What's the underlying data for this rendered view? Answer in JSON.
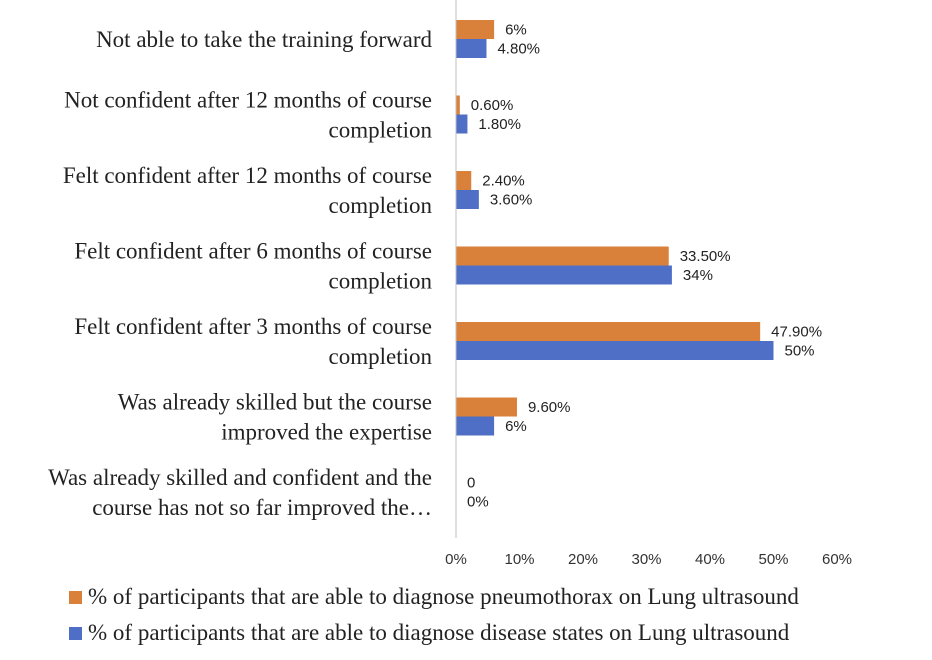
{
  "chart_data": {
    "type": "bar",
    "orientation": "horizontal",
    "categories": [
      [
        "Not able to take the training forward"
      ],
      [
        "Not confident after 12 months of course",
        "completion"
      ],
      [
        "Felt confident after 12 months of course",
        "completion"
      ],
      [
        "Felt confident after 6 months of course",
        "completion"
      ],
      [
        "Felt confident after 3 months of course",
        "completion"
      ],
      [
        "Was already skilled but the course",
        "improved the expertise"
      ],
      [
        "Was already skilled and confident and the",
        "course has not so far improved the…"
      ]
    ],
    "series": [
      {
        "name": "% of participants that are able to diagnose pneumothorax on Lung ultrasound",
        "color": "#D9803A",
        "values": [
          6,
          0.6,
          2.4,
          33.5,
          47.9,
          9.6,
          0
        ],
        "labels": [
          "6%",
          "0.60%",
          "2.40%",
          "33.50%",
          "47.90%",
          "9.60%",
          "0"
        ]
      },
      {
        "name": "% of participants that are able to diagnose disease states on Lung ultrasound",
        "color": "#4F6FC6",
        "values": [
          4.8,
          1.8,
          3.6,
          34,
          50,
          6,
          0
        ],
        "labels": [
          "4.80%",
          "1.80%",
          "3.60%",
          "34%",
          "50%",
          "6%",
          "0%"
        ]
      }
    ],
    "xlim": [
      0,
      60
    ],
    "x_ticks": [
      "0%",
      "10%",
      "20%",
      "30%",
      "40%",
      "50%",
      "60%"
    ],
    "grid": false,
    "legend_position": "bottom"
  }
}
